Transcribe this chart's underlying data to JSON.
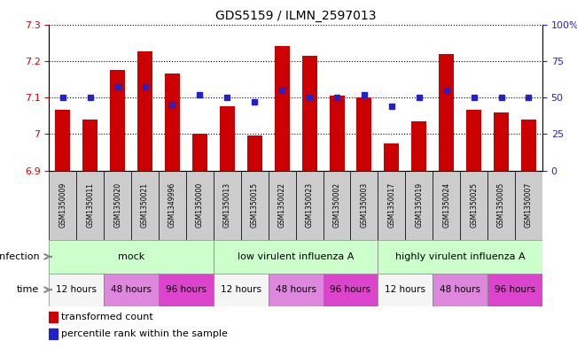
{
  "title": "GDS5159 / ILMN_2597013",
  "samples": [
    "GSM1350009",
    "GSM1350011",
    "GSM1350020",
    "GSM1350021",
    "GSM1349996",
    "GSM1350000",
    "GSM1350013",
    "GSM1350015",
    "GSM1350022",
    "GSM1350023",
    "GSM1350002",
    "GSM1350003",
    "GSM1350017",
    "GSM1350019",
    "GSM1350024",
    "GSM1350025",
    "GSM1350005",
    "GSM1350007"
  ],
  "bar_values": [
    7.065,
    7.04,
    7.175,
    7.225,
    7.165,
    7.0,
    7.075,
    6.995,
    7.24,
    7.215,
    7.105,
    7.1,
    6.975,
    7.035,
    7.22,
    7.065,
    7.06,
    7.04
  ],
  "dot_values": [
    50,
    50,
    57,
    57,
    45,
    52,
    50,
    47,
    55,
    50,
    50,
    52,
    44,
    50,
    55,
    50,
    50,
    50
  ],
  "ylim_left": [
    6.9,
    7.3
  ],
  "ylim_right": [
    0,
    100
  ],
  "yticks_left": [
    6.9,
    7.0,
    7.1,
    7.2,
    7.3
  ],
  "yticks_right": [
    0,
    25,
    50,
    75,
    100
  ],
  "ytick_labels_right": [
    "0",
    "25",
    "50",
    "75",
    "100%"
  ],
  "bar_color": "#cc0000",
  "dot_color": "#2222cc",
  "bar_bottom": 6.9,
  "bar_width": 0.55,
  "infection_defs": [
    {
      "label": "mock",
      "start": 0,
      "end": 6,
      "color": "#ccffcc"
    },
    {
      "label": "low virulent influenza A",
      "start": 6,
      "end": 12,
      "color": "#ccffcc"
    },
    {
      "label": "highly virulent influenza A",
      "start": 12,
      "end": 18,
      "color": "#ccffcc"
    }
  ],
  "time_defs": [
    {
      "label": "12 hours",
      "start": 0,
      "end": 2,
      "color": "#f5f5f5"
    },
    {
      "label": "48 hours",
      "start": 2,
      "end": 4,
      "color": "#dd88dd"
    },
    {
      "label": "96 hours",
      "start": 4,
      "end": 6,
      "color": "#dd44cc"
    },
    {
      "label": "12 hours",
      "start": 6,
      "end": 8,
      "color": "#f5f5f5"
    },
    {
      "label": "48 hours",
      "start": 8,
      "end": 10,
      "color": "#dd88dd"
    },
    {
      "label": "96 hours",
      "start": 10,
      "end": 12,
      "color": "#dd44cc"
    },
    {
      "label": "12 hours",
      "start": 12,
      "end": 14,
      "color": "#f5f5f5"
    },
    {
      "label": "48 hours",
      "start": 14,
      "end": 16,
      "color": "#dd88dd"
    },
    {
      "label": "96 hours",
      "start": 16,
      "end": 18,
      "color": "#dd44cc"
    }
  ],
  "gridline_color": "#000000",
  "axis_color_left": "#cc0000",
  "axis_color_right": "#2222cc",
  "bg_color": "#ffffff",
  "sample_box_color": "#cccccc",
  "legend_square_size": 8,
  "legend_text_size": 8
}
